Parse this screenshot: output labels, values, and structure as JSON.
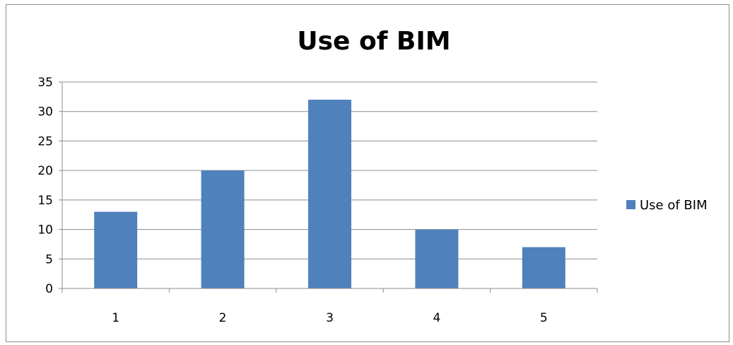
{
  "chart_data": {
    "type": "bar",
    "title": "Use of BIM",
    "categories": [
      "1",
      "2",
      "3",
      "4",
      "5"
    ],
    "series": [
      {
        "name": "Use of BIM",
        "values": [
          13,
          20,
          32,
          10,
          7
        ]
      }
    ],
    "ylim": [
      0,
      35
    ],
    "yticks": [
      0,
      5,
      10,
      15,
      20,
      25,
      30,
      35
    ],
    "xlabel": "",
    "ylabel": "",
    "grid": true,
    "legend": "right",
    "colors": {
      "bar": "#4f81bd",
      "grid": "#8c8c8c",
      "axis": "#8c8c8c"
    }
  }
}
